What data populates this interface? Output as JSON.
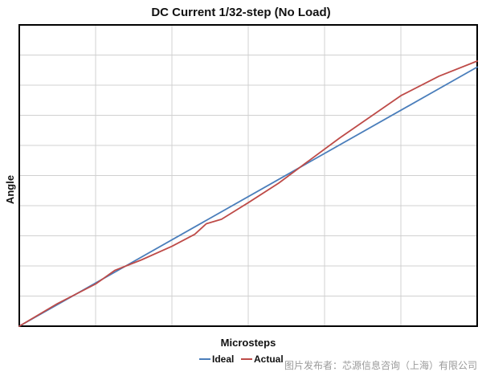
{
  "chart_data": {
    "type": "line",
    "title": "DC Current 1/32-step (No Load)",
    "xlabel": "Microsteps",
    "ylabel": "Angle",
    "xlim": [
      0,
      6
    ],
    "ylim": [
      0,
      10
    ],
    "grid": true,
    "legend_position": "bottom",
    "series": [
      {
        "name": "Ideal",
        "color": "#4a7ebb",
        "x": [
          0,
          6
        ],
        "y": [
          0,
          8.6
        ]
      },
      {
        "name": "Actual",
        "color": "#be4b48",
        "x": [
          0,
          0.5,
          1.0,
          1.25,
          1.6,
          2.0,
          2.3,
          2.45,
          2.65,
          3.0,
          3.4,
          3.8,
          4.2,
          4.6,
          5.0,
          5.5,
          6.0
        ],
        "y": [
          0,
          0.75,
          1.4,
          1.85,
          2.2,
          2.65,
          3.05,
          3.4,
          3.55,
          4.1,
          4.75,
          5.5,
          6.25,
          6.95,
          7.65,
          8.3,
          8.8
        ]
      }
    ]
  },
  "watermark": "图片发布者：芯源信息咨询（上海）有限公司"
}
